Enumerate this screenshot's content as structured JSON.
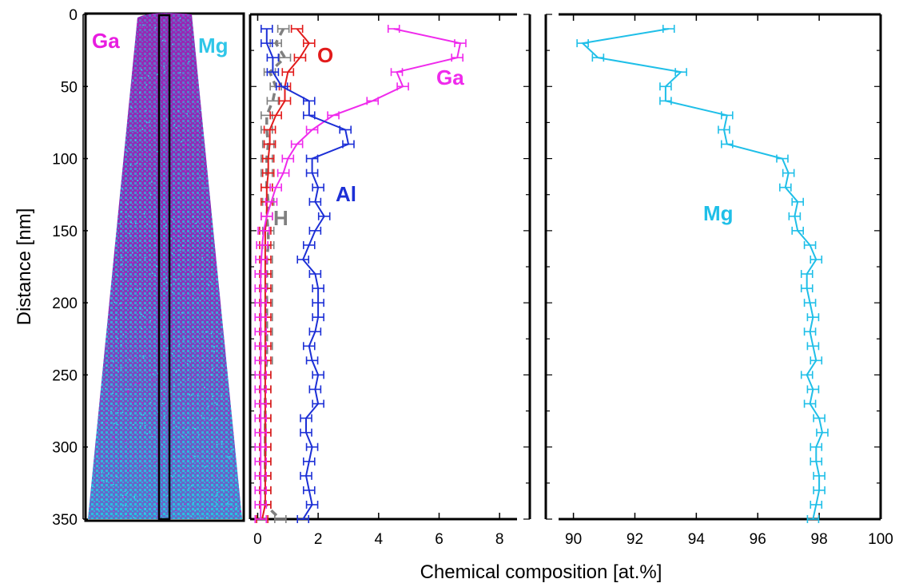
{
  "chart_data": {
    "type": "line",
    "ylabel": "Distance [nm]",
    "xlabel": "Chemical composition [at.%]",
    "y_ticks": [
      "0",
      "50",
      "100",
      "150",
      "200",
      "250",
      "300",
      "350"
    ],
    "y_tick_values": [
      0,
      50,
      100,
      150,
      200,
      250,
      300,
      350
    ],
    "ylim": [
      0,
      350
    ],
    "y_inverted": true,
    "x_broken_axis": true,
    "x_left_ticks": [
      "0",
      "2",
      "4",
      "6",
      "8"
    ],
    "x_left_tick_values": [
      0,
      2,
      4,
      6,
      8
    ],
    "x_left_range": [
      -0.25,
      9
    ],
    "x_right_ticks": [
      "90",
      "92",
      "94",
      "96",
      "98",
      "100"
    ],
    "x_right_tick_values": [
      90,
      92,
      94,
      96,
      98,
      100
    ],
    "x_right_range": [
      89.1,
      100
    ],
    "atom_map_labels": [
      {
        "text": "Ga",
        "color": "#e81ce0"
      },
      {
        "text": "Mg",
        "color": "#2fc6e8"
      }
    ],
    "series": [
      {
        "name": "Mg",
        "color": "#1fbfe8",
        "panel": "right",
        "dashed": false,
        "y": [
          10,
          20,
          30,
          40,
          50,
          60,
          70,
          80,
          90,
          100,
          110,
          120,
          130,
          140,
          150,
          160,
          170,
          180,
          190,
          200,
          210,
          220,
          230,
          240,
          250,
          260,
          270,
          280,
          290,
          300,
          310,
          320,
          330,
          340,
          350
        ],
        "values": [
          93.1,
          90.3,
          90.8,
          93.5,
          93.0,
          93.0,
          95.0,
          94.9,
          95.0,
          96.8,
          97.0,
          96.9,
          97.3,
          97.2,
          97.3,
          97.7,
          97.9,
          97.6,
          97.6,
          97.7,
          97.8,
          97.7,
          97.8,
          97.9,
          97.6,
          97.8,
          97.7,
          98.0,
          98.1,
          97.9,
          97.9,
          98.0,
          98.0,
          97.9,
          97.8
        ]
      },
      {
        "name": "Ga",
        "color": "#ef2aec",
        "panel": "left",
        "dashed": false,
        "y": [
          10,
          20,
          30,
          40,
          50,
          60,
          70,
          80,
          90,
          100,
          110,
          120,
          130,
          140,
          150,
          160,
          170,
          180,
          190,
          200,
          210,
          220,
          230,
          240,
          250,
          260,
          270,
          280,
          290,
          300,
          310,
          320,
          330,
          340,
          350
        ],
        "values": [
          4.5,
          6.7,
          6.6,
          4.6,
          4.8,
          3.8,
          2.5,
          1.8,
          1.3,
          1.0,
          0.85,
          0.6,
          0.45,
          0.3,
          0.2,
          0.15,
          0.12,
          0.1,
          0.1,
          0.1,
          0.1,
          0.1,
          0.1,
          0.1,
          0.1,
          0.1,
          0.1,
          0.1,
          0.1,
          0.1,
          0.1,
          0.1,
          0.1,
          0.1,
          0.1
        ]
      },
      {
        "name": "Al",
        "color": "#1c2fd6",
        "panel": "left",
        "dashed": false,
        "y": [
          10,
          20,
          30,
          40,
          50,
          60,
          70,
          80,
          90,
          100,
          110,
          120,
          130,
          140,
          150,
          160,
          170,
          180,
          190,
          200,
          210,
          220,
          230,
          240,
          250,
          260,
          270,
          280,
          290,
          300,
          310,
          320,
          330,
          340,
          350
        ],
        "values": [
          0.3,
          0.3,
          0.5,
          0.5,
          0.8,
          1.7,
          1.7,
          2.9,
          3.0,
          1.8,
          1.8,
          2.0,
          1.9,
          2.2,
          1.9,
          1.7,
          1.5,
          1.9,
          2.0,
          2.0,
          2.0,
          1.9,
          1.7,
          1.8,
          2.0,
          1.9,
          2.0,
          1.6,
          1.6,
          1.8,
          1.7,
          1.6,
          1.7,
          1.8,
          1.5
        ]
      },
      {
        "name": "O",
        "color": "#e21b1b",
        "panel": "left",
        "dashed": false,
        "y": [
          10,
          20,
          30,
          40,
          50,
          60,
          70,
          80,
          90,
          100,
          110,
          120,
          130,
          140,
          150,
          160,
          170,
          180,
          190,
          200,
          210,
          220,
          230,
          240,
          250,
          260,
          270,
          280,
          290,
          300,
          310,
          320,
          330,
          340,
          350
        ],
        "values": [
          1.3,
          1.7,
          1.4,
          1.0,
          0.9,
          0.9,
          0.6,
          0.4,
          0.4,
          0.35,
          0.35,
          0.3,
          0.3,
          0.3,
          0.25,
          0.25,
          0.25,
          0.25,
          0.25,
          0.25,
          0.25,
          0.25,
          0.25,
          0.25,
          0.25,
          0.25,
          0.25,
          0.25,
          0.25,
          0.25,
          0.25,
          0.25,
          0.25,
          0.25,
          0.15
        ]
      },
      {
        "name": "H",
        "color": "#808080",
        "panel": "left",
        "dashed": true,
        "y": [
          10,
          20,
          30,
          40,
          50,
          60,
          70,
          80,
          90,
          100,
          110,
          120,
          130,
          140,
          150,
          160,
          170,
          180,
          190,
          200,
          210,
          220,
          230,
          240,
          250,
          260,
          270,
          280,
          290,
          300,
          310,
          320,
          330,
          340,
          350
        ],
        "values": [
          0.85,
          0.6,
          0.9,
          0.4,
          0.6,
          0.5,
          0.3,
          0.3,
          0.35,
          0.3,
          0.3,
          0.3,
          0.35,
          0.3,
          0.35,
          0.35,
          0.3,
          0.3,
          0.3,
          0.3,
          0.3,
          0.3,
          0.3,
          0.3,
          0.25,
          0.25,
          0.25,
          0.25,
          0.25,
          0.25,
          0.25,
          0.25,
          0.25,
          0.25,
          0.75
        ]
      }
    ],
    "series_labels": [
      {
        "text": "O",
        "color": "#e21b1b"
      },
      {
        "text": "Ga",
        "color": "#ef2aec"
      },
      {
        "text": "Al",
        "color": "#1c2fd6"
      },
      {
        "text": "H",
        "color": "#808080"
      },
      {
        "text": "Mg",
        "color": "#1fbfe8"
      }
    ]
  }
}
